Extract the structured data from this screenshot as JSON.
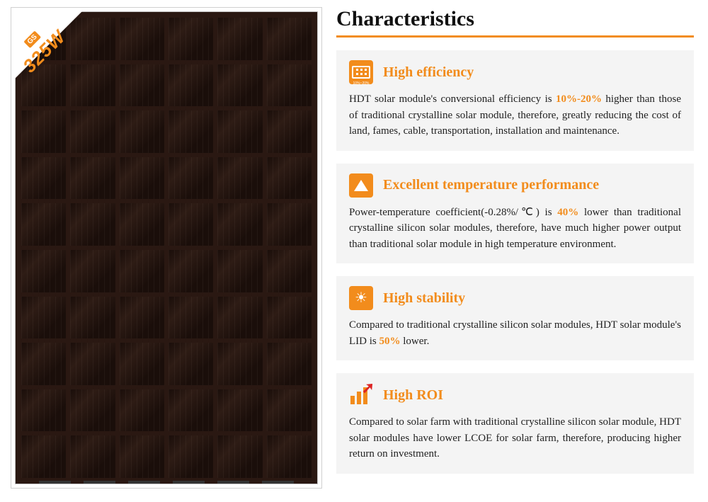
{
  "panel": {
    "wattage_label": "325W",
    "badge_logo": "GS",
    "rows": 10,
    "cols": 6,
    "cell_color": "#1a0e0a",
    "frame_color": "#d0d0d0"
  },
  "heading": "Characteristics",
  "accent_color": "#f28c1c",
  "card_bg": "#f4f4f4",
  "cards": [
    {
      "icon": "efficiency",
      "title": "High efficiency",
      "body_pre": "HDT solar module's conversional efficiency is ",
      "highlight": "10%-20%",
      "body_post": " higher than those of traditional crystalline solar module, therefore, greatly reducing the cost of land, fames, cable, transportation, installation and maintenance."
    },
    {
      "icon": "temp",
      "title": "Excellent temperature performance",
      "body_pre": "Power-temperature coefficient(-0.28%/℃) is ",
      "highlight": "40%",
      "body_post": " lower than traditional crystalline silicon solar modules, therefore, have much higher power output than traditional  solar module in high temperature environment."
    },
    {
      "icon": "stability",
      "title": "High stability",
      "body_pre": "Compared to traditional crystalline silicon solar modules, HDT solar module's LID is ",
      "highlight": "50%",
      "body_post": " lower."
    },
    {
      "icon": "roi",
      "title": "High ROI",
      "body_pre": "Compared to solar farm with traditional crystalline silicon solar module, HDT solar modules have lower LCOE for solar farm, therefore, producing higher return on investment.",
      "highlight": "",
      "body_post": ""
    }
  ]
}
